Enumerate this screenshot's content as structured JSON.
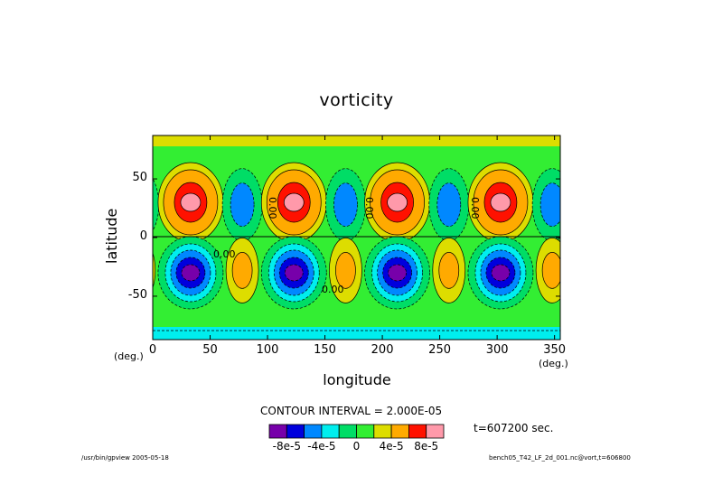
{
  "chart_data": {
    "type": "contour",
    "title": "vorticity",
    "xlabel": "longitude",
    "ylabel": "latitude",
    "x_unit": "(deg.)",
    "y_unit": "(deg.)",
    "xlim": [
      0,
      355
    ],
    "ylim": [
      -87,
      87
    ],
    "x_ticks": [
      "0",
      "50",
      "100",
      "150",
      "200",
      "250",
      "300",
      "350"
    ],
    "y_ticks": [
      "50",
      "0",
      "-50"
    ],
    "wave_number": 4,
    "contour_interval_label": "CONTOUR INTERVAL = 2.000E-05",
    "contour_labels": [
      "0.00",
      "0.00",
      "0.00",
      "0.00",
      "0.00"
    ],
    "time_label": "t=607200 sec.",
    "colorbar": {
      "levels": [
        -0.0001,
        -8e-05,
        -6e-05,
        -4e-05,
        -2e-05,
        0,
        2e-05,
        4e-05,
        6e-05,
        8e-05,
        0.0001
      ],
      "colors": [
        "#7700aa",
        "#0000dd",
        "#0088ff",
        "#00eeee",
        "#00dd66",
        "#33ee33",
        "#dddd00",
        "#ffaa00",
        "#ff1100",
        "#ff99aa"
      ],
      "tick_labels": [
        "-8e-5",
        "-4e-5",
        "0",
        "4e-5",
        "8e-5"
      ]
    },
    "colors": {
      "zero_band": "#33ee33",
      "weak_positive": "#dddd00",
      "weak_negative": "#00dd66"
    }
  },
  "footer": {
    "left": "/usr/bin/gpview  2005-05-18",
    "right": "bench05_T42_LF_2d_001.nc@vort,t=606800"
  }
}
